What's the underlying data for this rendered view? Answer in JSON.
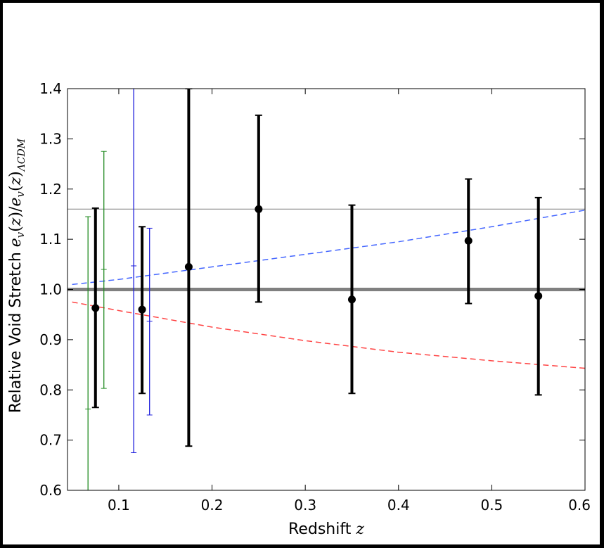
{
  "chart_data": {
    "type": "scatter",
    "xlabel": "Redshift z",
    "ylabel": "Relative Void Stretch e_v(z)/e_v(z)_ΛCDM",
    "xlim": [
      0.045,
      0.6
    ],
    "ylim": [
      0.6,
      1.4
    ],
    "xticks": [
      "0.1",
      "0.2",
      "0.3",
      "0.4",
      "0.5",
      "0.6"
    ],
    "yticks": [
      "0.6",
      "0.7",
      "0.8",
      "0.9",
      "1.0",
      "1.1",
      "1.2",
      "1.3",
      "1.4"
    ],
    "grid": false,
    "colors": {
      "main": "#000000",
      "green": "#228b22",
      "blue": "#1f1fdd",
      "ref_line": "#808080",
      "thin_line": "#808080",
      "dashed_blue": "#4466ff",
      "dashed_red": "#ff4444"
    },
    "reference_lines": [
      {
        "y": 1.0,
        "style": "solid",
        "width": "thick",
        "color": "#808080"
      },
      {
        "y": 1.16,
        "style": "solid",
        "width": "thin",
        "color": "#808080"
      }
    ],
    "model_curves": [
      {
        "color": "#4466ff",
        "style": "dashed",
        "x": [
          0.05,
          0.1,
          0.2,
          0.3,
          0.4,
          0.5,
          0.6
        ],
        "y": [
          1.01,
          1.02,
          1.045,
          1.07,
          1.095,
          1.125,
          1.158
        ]
      },
      {
        "color": "#ff4444",
        "style": "dashed",
        "x": [
          0.05,
          0.1,
          0.2,
          0.3,
          0.4,
          0.5,
          0.6
        ],
        "y": [
          0.975,
          0.958,
          0.925,
          0.898,
          0.875,
          0.858,
          0.843
        ]
      }
    ],
    "series": [
      {
        "color": "#000000",
        "markers": true,
        "weight": "thick",
        "points": [
          {
            "x": 0.075,
            "y": 0.963,
            "lo": 0.765,
            "hi": 1.162
          },
          {
            "x": 0.125,
            "y": 0.96,
            "lo": 0.793,
            "hi": 1.125
          },
          {
            "x": 0.175,
            "y": 1.045,
            "lo": 0.688,
            "hi": 1.4
          },
          {
            "x": 0.25,
            "y": 1.16,
            "lo": 0.975,
            "hi": 1.347
          },
          {
            "x": 0.35,
            "y": 0.98,
            "lo": 0.793,
            "hi": 1.168
          },
          {
            "x": 0.475,
            "y": 1.097,
            "lo": 0.972,
            "hi": 1.22
          },
          {
            "x": 0.55,
            "y": 0.987,
            "lo": 0.79,
            "hi": 1.183
          }
        ]
      },
      {
        "color": "#228b22",
        "markers": false,
        "weight": "thin",
        "points": [
          {
            "x": 0.067,
            "lo": 0.59,
            "hi": 1.145,
            "mid": 0.762
          },
          {
            "x": 0.084,
            "lo": 0.803,
            "hi": 1.275,
            "mid": 1.04
          }
        ]
      },
      {
        "color": "#1f1fdd",
        "markers": false,
        "weight": "thin",
        "points": [
          {
            "x": 0.116,
            "lo": 0.675,
            "hi": 1.4,
            "mid": 1.047
          },
          {
            "x": 0.133,
            "lo": 0.75,
            "hi": 1.122,
            "mid": 0.937
          }
        ]
      }
    ]
  }
}
